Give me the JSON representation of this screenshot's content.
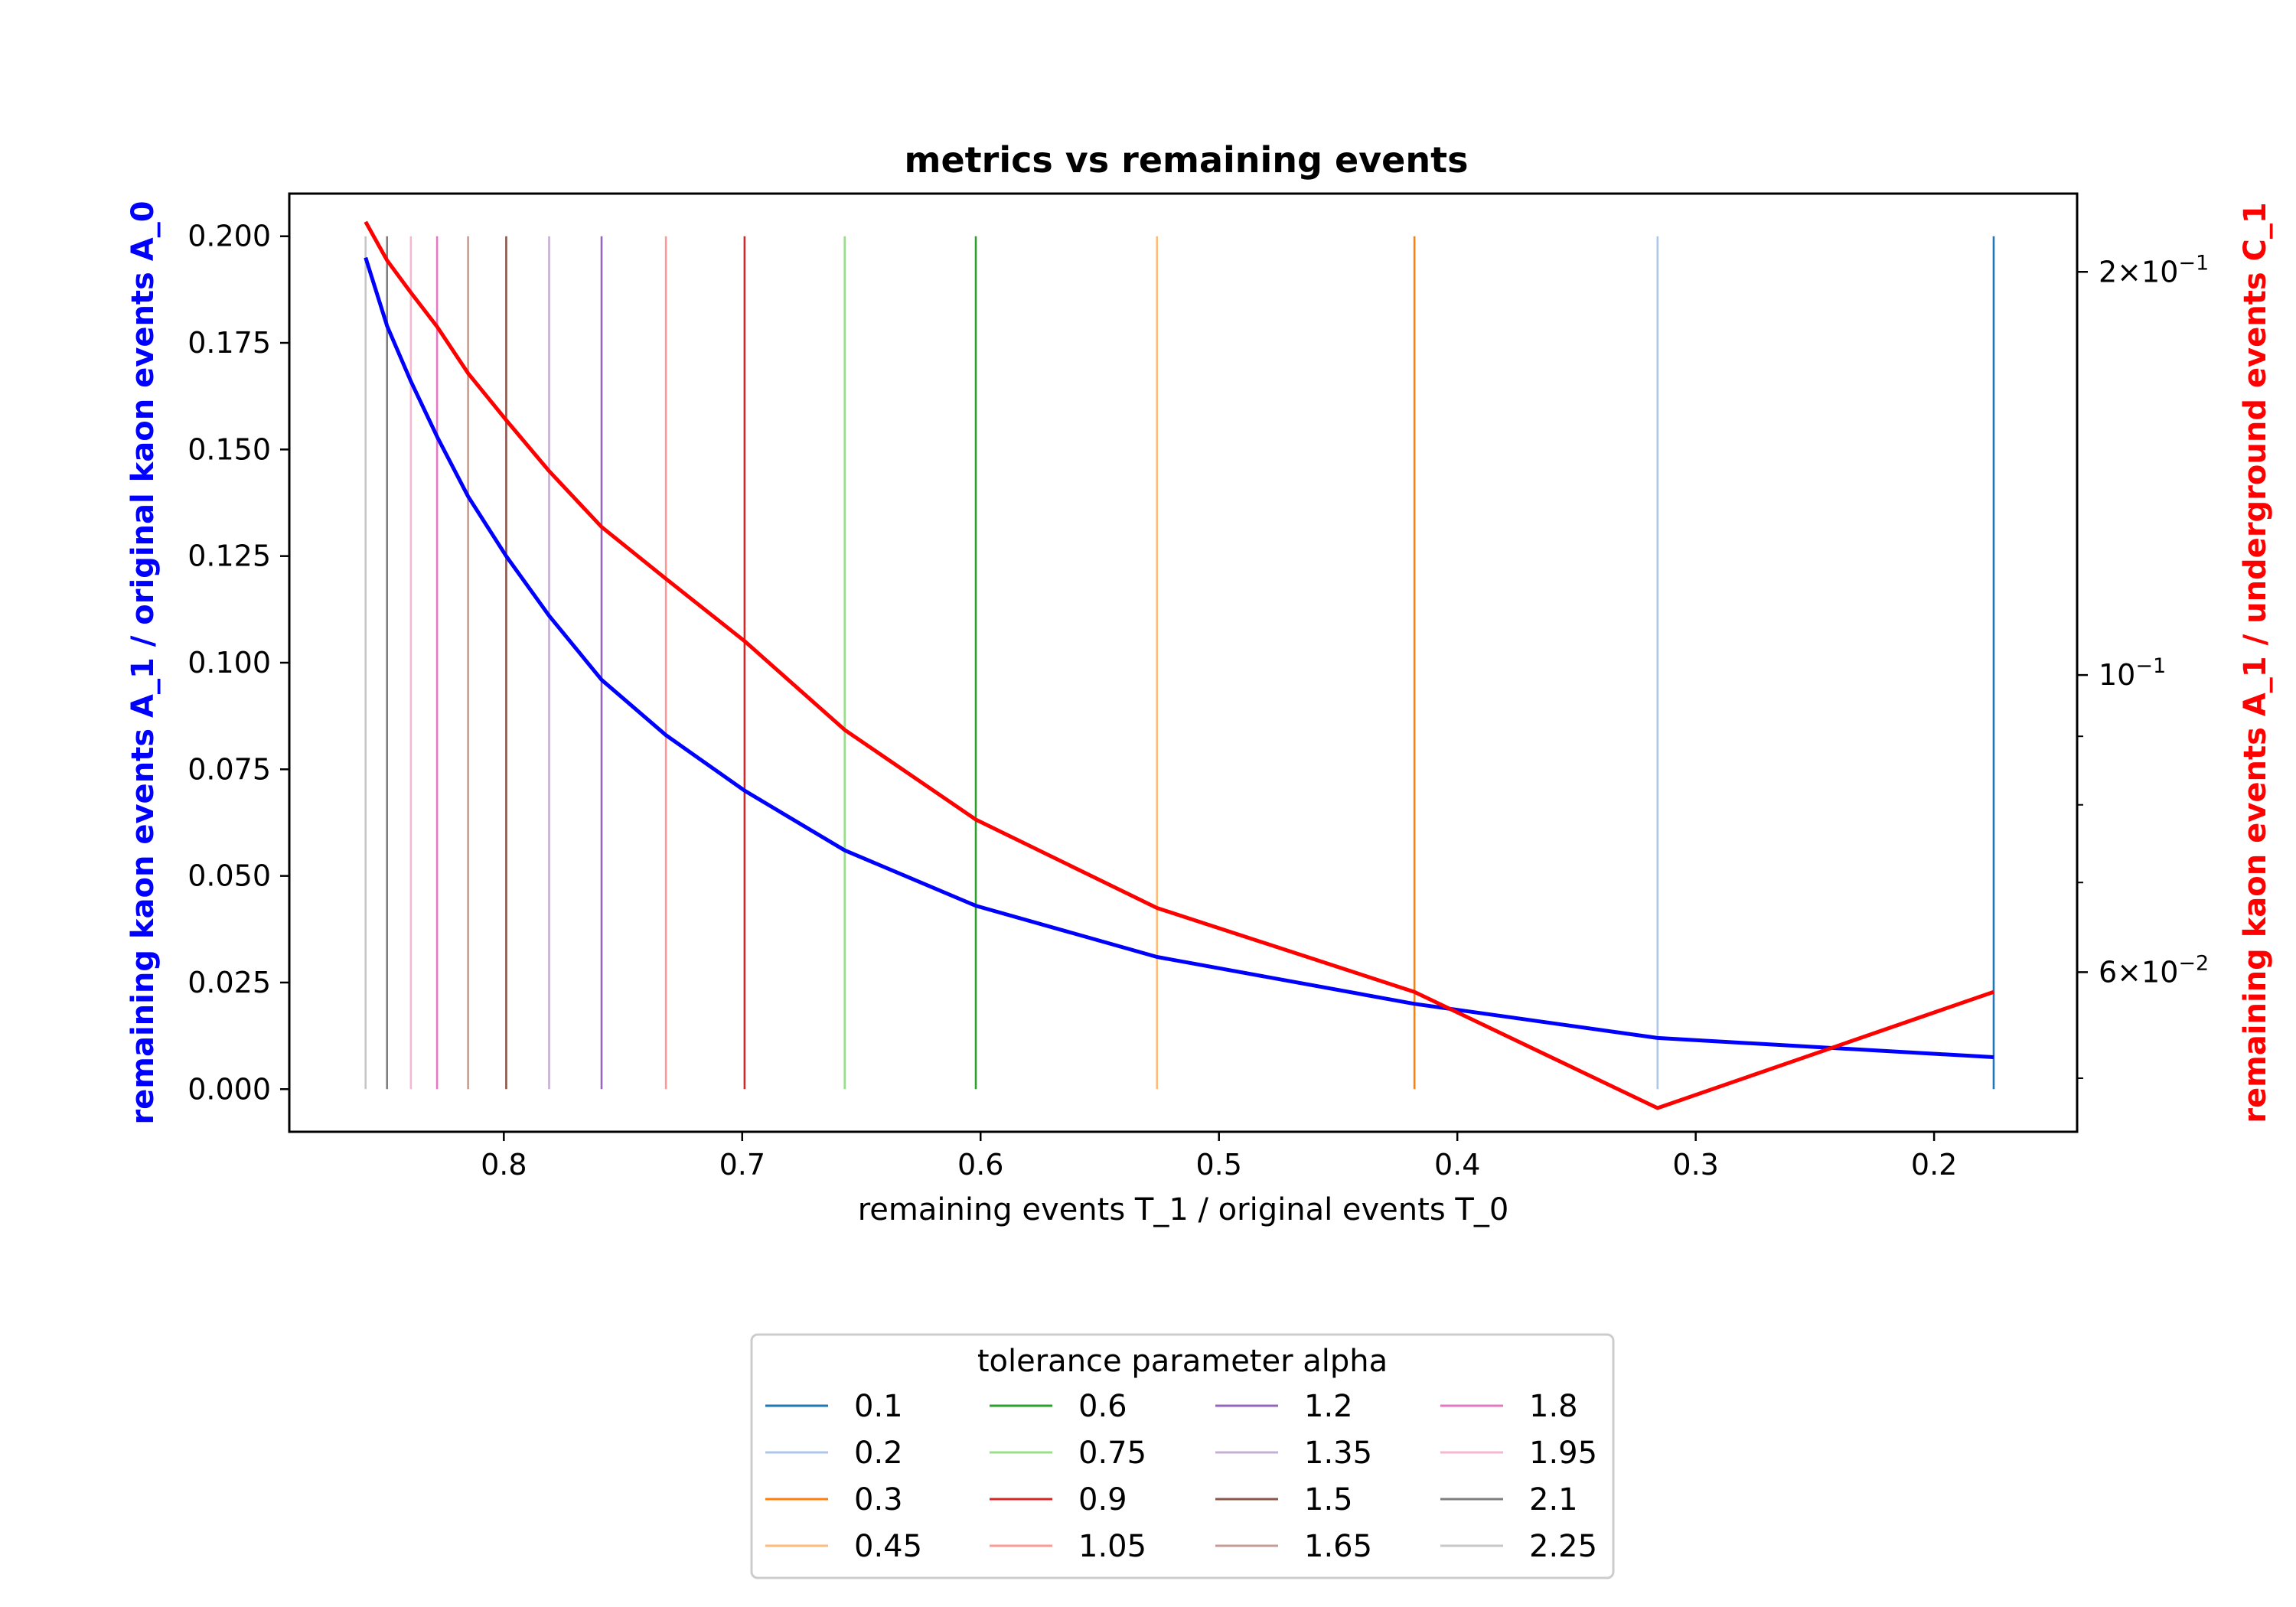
{
  "chart_data": {
    "type": "line",
    "title": "metrics vs remaining events",
    "xlabel": "remaining events T_1 / original events T_0",
    "ylabel_left": "remaining kaon events A_1 / original kaon events A_0",
    "ylabel_right": "remaining kaon events A_1 / underground events C_1",
    "x_axis": {
      "range": [
        0.89,
        0.14
      ],
      "inverted": true,
      "ticks": [
        "0.8",
        "0.7",
        "0.6",
        "0.5",
        "0.4",
        "0.3",
        "0.2"
      ],
      "tick_values": [
        0.8,
        0.7,
        0.6,
        0.5,
        0.4,
        0.3,
        0.2
      ]
    },
    "y_left_axis": {
      "range": [
        -0.01,
        0.21
      ],
      "ticks": [
        "0.000",
        "0.025",
        "0.050",
        "0.075",
        "0.100",
        "0.125",
        "0.150",
        "0.175",
        "0.200"
      ],
      "tick_values": [
        0,
        0.025,
        0.05,
        0.075,
        0.1,
        0.125,
        0.15,
        0.175,
        0.2
      ],
      "color": "#0000ff"
    },
    "y_right_axis": {
      "scale": "log",
      "range": [
        0.0456,
        0.2288
      ],
      "major_ticks": [
        0.2,
        0.1,
        0.06
      ],
      "minor_ticks": [
        0.07,
        0.08,
        0.09,
        0.05
      ],
      "color": "#ff0000"
    },
    "x": [
      0.858,
      0.849,
      0.839,
      0.828,
      0.815,
      0.799,
      0.781,
      0.759,
      0.732,
      0.699,
      0.657,
      0.602,
      0.526,
      0.418,
      0.316,
      0.175
    ],
    "series": [
      {
        "axis": "left",
        "color": "#0000ff",
        "values": [
          0.195,
          0.179,
          0.166,
          0.153,
          0.139,
          0.125,
          0.111,
          0.096,
          0.083,
          0.07,
          0.056,
          0.043,
          0.031,
          0.02,
          0.012,
          0.0075
        ]
      },
      {
        "axis": "right",
        "color": "#ff0000",
        "values": [
          0.218,
          0.204,
          0.193,
          0.182,
          0.168,
          0.155,
          0.142,
          0.129,
          0.118,
          0.106,
          0.091,
          0.078,
          0.067,
          0.058,
          0.0475,
          0.058
        ]
      }
    ],
    "vlines": {
      "legend_title": "tolerance parameter alpha",
      "legend_position": "below",
      "y_range": [
        0,
        0.2
      ],
      "items": [
        {
          "label": "0.1",
          "x": 0.175,
          "color": "#1f77b4"
        },
        {
          "label": "0.2",
          "x": 0.316,
          "color": "#aec7e8"
        },
        {
          "label": "0.3",
          "x": 0.418,
          "color": "#ff7f0e"
        },
        {
          "label": "0.45",
          "x": 0.526,
          "color": "#ffbb78"
        },
        {
          "label": "0.6",
          "x": 0.602,
          "color": "#2ca02c"
        },
        {
          "label": "0.75",
          "x": 0.657,
          "color": "#98df8a"
        },
        {
          "label": "0.9",
          "x": 0.699,
          "color": "#d62728"
        },
        {
          "label": "1.05",
          "x": 0.732,
          "color": "#ff9896"
        },
        {
          "label": "1.2",
          "x": 0.759,
          "color": "#9467bd"
        },
        {
          "label": "1.35",
          "x": 0.781,
          "color": "#c5b0d5"
        },
        {
          "label": "1.5",
          "x": 0.799,
          "color": "#8c564b"
        },
        {
          "label": "1.65",
          "x": 0.815,
          "color": "#c49c94"
        },
        {
          "label": "1.8",
          "x": 0.828,
          "color": "#e377c2"
        },
        {
          "label": "1.95",
          "x": 0.839,
          "color": "#f7b6d2"
        },
        {
          "label": "2.1",
          "x": 0.849,
          "color": "#7f7f7f"
        },
        {
          "label": "2.25",
          "x": 0.858,
          "color": "#c7c7c7"
        }
      ]
    }
  }
}
